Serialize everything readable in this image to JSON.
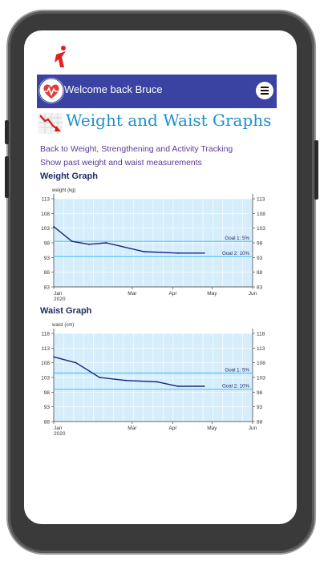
{
  "header": {
    "welcome": "Welcome back Bruce"
  },
  "page": {
    "title": "Weight and Waist Graphs"
  },
  "links": {
    "back": "Back to Weight, Strengthening and Activity Tracking",
    "show_past": "Show past weight and waist measurements"
  },
  "sections": {
    "weight": "Weight Graph",
    "waist": "Waist Graph"
  },
  "chart_data": [
    {
      "type": "line",
      "ylabel": "weight (kg)",
      "x_ticks": [
        "Jan\n2020",
        "Mar",
        "Apr",
        "May",
        "Jun"
      ],
      "y_ticks": [
        83,
        88,
        93,
        98,
        103,
        108,
        113
      ],
      "ylim": [
        83,
        113
      ],
      "xlim": [
        "2020-01-01",
        "2020-06-01"
      ],
      "series": [
        {
          "x": [
            "2020-01-01",
            "2020-01-15",
            "2020-01-28",
            "2020-02-10",
            "2020-03-10",
            "2020-04-05",
            "2020-04-25"
          ],
          "values": [
            103.5,
            98.5,
            97.5,
            98,
            95,
            94.5,
            94.5
          ]
        }
      ],
      "goals": [
        {
          "label": "Goal 1: 5%",
          "value": 98.5
        },
        {
          "label": "Goal 2: 10%",
          "value": 93.3
        }
      ],
      "colors": {
        "line": "#1a237e",
        "goal": "#4fc3f7",
        "bg": "#d6eefc"
      },
      "grid": true
    },
    {
      "type": "line",
      "ylabel": "waist (cm)",
      "x_ticks": [
        "Jan\n2020",
        "Mar",
        "Apr",
        "May",
        "Jun"
      ],
      "y_ticks": [
        88,
        93,
        98,
        103,
        108,
        113,
        118
      ],
      "ylim": [
        88,
        118
      ],
      "xlim": [
        "2020-01-01",
        "2020-06-01"
      ],
      "series": [
        {
          "x": [
            "2020-01-01",
            "2020-01-18",
            "2020-02-05",
            "2020-02-25",
            "2020-03-20",
            "2020-04-05",
            "2020-04-25"
          ],
          "values": [
            110,
            108,
            103,
            102,
            101.5,
            100,
            100
          ]
        }
      ],
      "goals": [
        {
          "label": "Goal 1: 5%",
          "value": 104.5
        },
        {
          "label": "Goal 2: 10%",
          "value": 99
        }
      ],
      "colors": {
        "line": "#1a237e",
        "goal": "#4fc3f7",
        "bg": "#d6eefc"
      },
      "grid": true
    }
  ]
}
